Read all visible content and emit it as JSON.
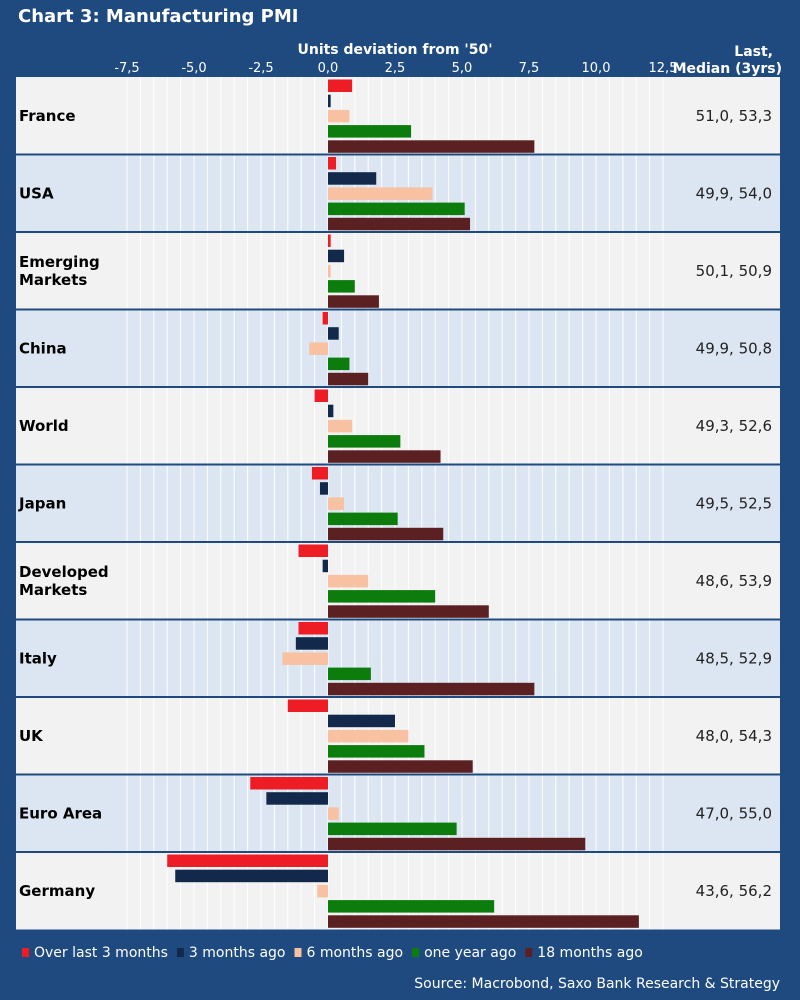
{
  "title": "Chart 3: Manufacturing PMI",
  "source": "Source: Macrobond, Saxo Bank Research & Strategy",
  "colors": {
    "background": "#1f4a80",
    "row_light": "#f2f2f2",
    "row_blue": "#dce6f2",
    "grid": "#ffffff"
  },
  "chart_data": {
    "type": "bar",
    "orientation": "horizontal",
    "xlabel": "Units deviation from '50'",
    "right_header": [
      "Last,",
      "Median (3yrs)"
    ],
    "xlim": [
      -7.5,
      12.5
    ],
    "xticks": [
      "-7,5",
      "-5,0",
      "-2,5",
      "0,0",
      "2,5",
      "5,0",
      "7,5",
      "10,0",
      "12,5"
    ],
    "xtick_values": [
      -7.5,
      -5,
      -2.5,
      0,
      2.5,
      5,
      7.5,
      10,
      12.5
    ],
    "grid": true,
    "legend_position": "bottom",
    "categories": [
      [
        "France"
      ],
      [
        "USA"
      ],
      [
        "Emerging",
        "Markets"
      ],
      [
        "China"
      ],
      [
        "World"
      ],
      [
        "Japan"
      ],
      [
        "Developed",
        "Markets"
      ],
      [
        "Italy"
      ],
      [
        "UK"
      ],
      [
        "Euro Area"
      ],
      [
        "Germany"
      ]
    ],
    "right_values": [
      "51,0, 53,3",
      "49,9, 54,0",
      "50,1, 50,9",
      "49,9, 50,8",
      "49,3, 52,6",
      "49,5, 52,5",
      "48,6, 53,9",
      "48,5, 52,9",
      "48,0, 54,3",
      "47,0, 55,0",
      "43,6, 56,2"
    ],
    "series": [
      {
        "name": "Over last 3 months",
        "color": "#ee1c25",
        "values": [
          0.9,
          0.3,
          0.1,
          -0.2,
          -0.5,
          -0.6,
          -1.1,
          -1.1,
          -1.5,
          -2.9,
          -6.0
        ]
      },
      {
        "name": "3 months ago",
        "color": "#13294b",
        "values": [
          0.1,
          1.8,
          0.6,
          0.4,
          0.2,
          -0.3,
          -0.2,
          -1.2,
          2.5,
          -2.3,
          -5.7
        ]
      },
      {
        "name": "6 months ago",
        "color": "#f7c1a2",
        "values": [
          0.8,
          3.9,
          0.1,
          -0.7,
          0.9,
          0.6,
          1.5,
          -1.7,
          3.0,
          0.4,
          -0.4
        ]
      },
      {
        "name": "one year ago",
        "color": "#0c7d0c",
        "values": [
          3.1,
          5.1,
          1.0,
          0.8,
          2.7,
          2.6,
          4.0,
          1.6,
          3.6,
          4.8,
          6.2
        ]
      },
      {
        "name": "18 months ago",
        "color": "#5b2021",
        "values": [
          7.7,
          5.3,
          1.9,
          1.5,
          4.2,
          4.3,
          6.0,
          7.7,
          5.4,
          9.6,
          11.6
        ]
      }
    ]
  }
}
